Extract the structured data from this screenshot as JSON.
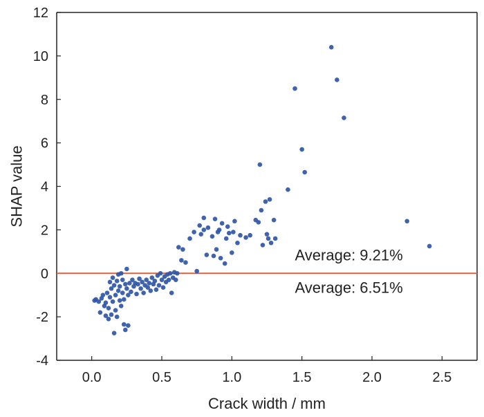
{
  "chart_data": {
    "type": "scatter",
    "title": "",
    "xlabel": "Crack width / mm",
    "ylabel": "SHAP value",
    "xlim": [
      -0.25,
      2.75
    ],
    "ylim": [
      -4,
      12
    ],
    "xticks": [
      "0.0",
      "0.5",
      "1.0",
      "1.5",
      "2.0",
      "2.5"
    ],
    "yticks": [
      "-4",
      "-2",
      "0",
      "2",
      "4",
      "6",
      "8",
      "10",
      "12"
    ],
    "grid": false,
    "point_color": "#2f56a6",
    "reference_line": {
      "y": 0,
      "color": "#e0603a"
    },
    "annotations": [
      {
        "text": "Average: 9.21%",
        "x": 1.45,
        "y": 0.6
      },
      {
        "text": "Average: 6.51%",
        "x": 1.45,
        "y": -0.9
      }
    ],
    "points": [
      [
        0.02,
        -1.25
      ],
      [
        0.03,
        -1.2
      ],
      [
        0.05,
        -1.3
      ],
      [
        0.06,
        -1.8
      ],
      [
        0.07,
        -1.15
      ],
      [
        0.08,
        -1.0
      ],
      [
        0.09,
        -1.5
      ],
      [
        0.1,
        -1.95
      ],
      [
        0.1,
        -1.35
      ],
      [
        0.11,
        -0.9
      ],
      [
        0.12,
        -1.6
      ],
      [
        0.12,
        -2.1
      ],
      [
        0.13,
        -0.4
      ],
      [
        0.13,
        -1.1
      ],
      [
        0.14,
        -0.7
      ],
      [
        0.14,
        -1.9
      ],
      [
        0.15,
        -0.2
      ],
      [
        0.15,
        -1.3
      ],
      [
        0.16,
        -2.75
      ],
      [
        0.16,
        -0.55
      ],
      [
        0.17,
        -1.0
      ],
      [
        0.17,
        -1.7
      ],
      [
        0.18,
        -0.35
      ],
      [
        0.18,
        -2.0
      ],
      [
        0.19,
        -0.8
      ],
      [
        0.19,
        -0.05
      ],
      [
        0.2,
        -1.25
      ],
      [
        0.2,
        -0.6
      ],
      [
        0.21,
        -1.5
      ],
      [
        0.21,
        0.0
      ],
      [
        0.22,
        -0.3
      ],
      [
        0.22,
        -0.9
      ],
      [
        0.23,
        -2.35
      ],
      [
        0.23,
        -1.2
      ],
      [
        0.24,
        -0.5
      ],
      [
        0.24,
        -2.6
      ],
      [
        0.25,
        -0.7
      ],
      [
        0.25,
        0.2
      ],
      [
        0.26,
        -1.0
      ],
      [
        0.26,
        -2.4
      ],
      [
        0.27,
        -0.45
      ],
      [
        0.28,
        -0.85
      ],
      [
        0.29,
        -0.3
      ],
      [
        0.3,
        -0.6
      ],
      [
        0.31,
        -0.45
      ],
      [
        0.32,
        -0.95
      ],
      [
        0.33,
        -0.5
      ],
      [
        0.34,
        -0.25
      ],
      [
        0.35,
        -0.7
      ],
      [
        0.36,
        -0.4
      ],
      [
        0.37,
        -0.9
      ],
      [
        0.38,
        -0.55
      ],
      [
        0.39,
        -0.3
      ],
      [
        0.4,
        -0.65
      ],
      [
        0.41,
        -0.45
      ],
      [
        0.42,
        -0.8
      ],
      [
        0.43,
        -0.2
      ],
      [
        0.44,
        -0.5
      ],
      [
        0.45,
        -0.35
      ],
      [
        0.46,
        -0.75
      ],
      [
        0.47,
        -0.1
      ],
      [
        0.48,
        -0.55
      ],
      [
        0.49,
        0.0
      ],
      [
        0.5,
        -0.3
      ],
      [
        0.51,
        -0.65
      ],
      [
        0.52,
        -0.15
      ],
      [
        0.53,
        -0.4
      ],
      [
        0.54,
        -0.05
      ],
      [
        0.55,
        -0.3
      ],
      [
        0.56,
        0.0
      ],
      [
        0.57,
        -0.9
      ],
      [
        0.58,
        -0.2
      ],
      [
        0.59,
        0.05
      ],
      [
        0.6,
        -0.3
      ],
      [
        0.61,
        0.0
      ],
      [
        0.62,
        1.2
      ],
      [
        0.64,
        0.6
      ],
      [
        0.65,
        1.1
      ],
      [
        0.67,
        0.5
      ],
      [
        0.7,
        1.6
      ],
      [
        0.73,
        1.9
      ],
      [
        0.75,
        0.1
      ],
      [
        0.77,
        2.2
      ],
      [
        0.78,
        1.8
      ],
      [
        0.8,
        2.55
      ],
      [
        0.8,
        2.0
      ],
      [
        0.82,
        0.85
      ],
      [
        0.83,
        2.1
      ],
      [
        0.86,
        1.7
      ],
      [
        0.87,
        0.8
      ],
      [
        0.88,
        2.5
      ],
      [
        0.89,
        1.1
      ],
      [
        0.9,
        1.9
      ],
      [
        0.91,
        2.0
      ],
      [
        0.92,
        0.7
      ],
      [
        0.93,
        2.3
      ],
      [
        0.95,
        0.45
      ],
      [
        0.96,
        1.6
      ],
      [
        0.97,
        2.15
      ],
      [
        0.98,
        1.85
      ],
      [
        1.0,
        0.95
      ],
      [
        1.01,
        1.9
      ],
      [
        1.02,
        2.4
      ],
      [
        1.04,
        1.4
      ],
      [
        1.06,
        1.75
      ],
      [
        1.1,
        1.65
      ],
      [
        1.13,
        1.75
      ],
      [
        1.17,
        2.45
      ],
      [
        1.19,
        2.35
      ],
      [
        1.2,
        5.0
      ],
      [
        1.21,
        2.9
      ],
      [
        1.22,
        1.3
      ],
      [
        1.24,
        3.3
      ],
      [
        1.25,
        1.8
      ],
      [
        1.26,
        1.6
      ],
      [
        1.27,
        3.4
      ],
      [
        1.28,
        1.4
      ],
      [
        1.3,
        2.45
      ],
      [
        1.31,
        1.6
      ],
      [
        1.4,
        3.85
      ],
      [
        1.45,
        8.5
      ],
      [
        1.5,
        5.7
      ],
      [
        1.52,
        4.65
      ],
      [
        1.71,
        10.4
      ],
      [
        1.75,
        8.9
      ],
      [
        1.8,
        7.15
      ],
      [
        2.25,
        2.4
      ],
      [
        2.41,
        1.25
      ]
    ]
  }
}
